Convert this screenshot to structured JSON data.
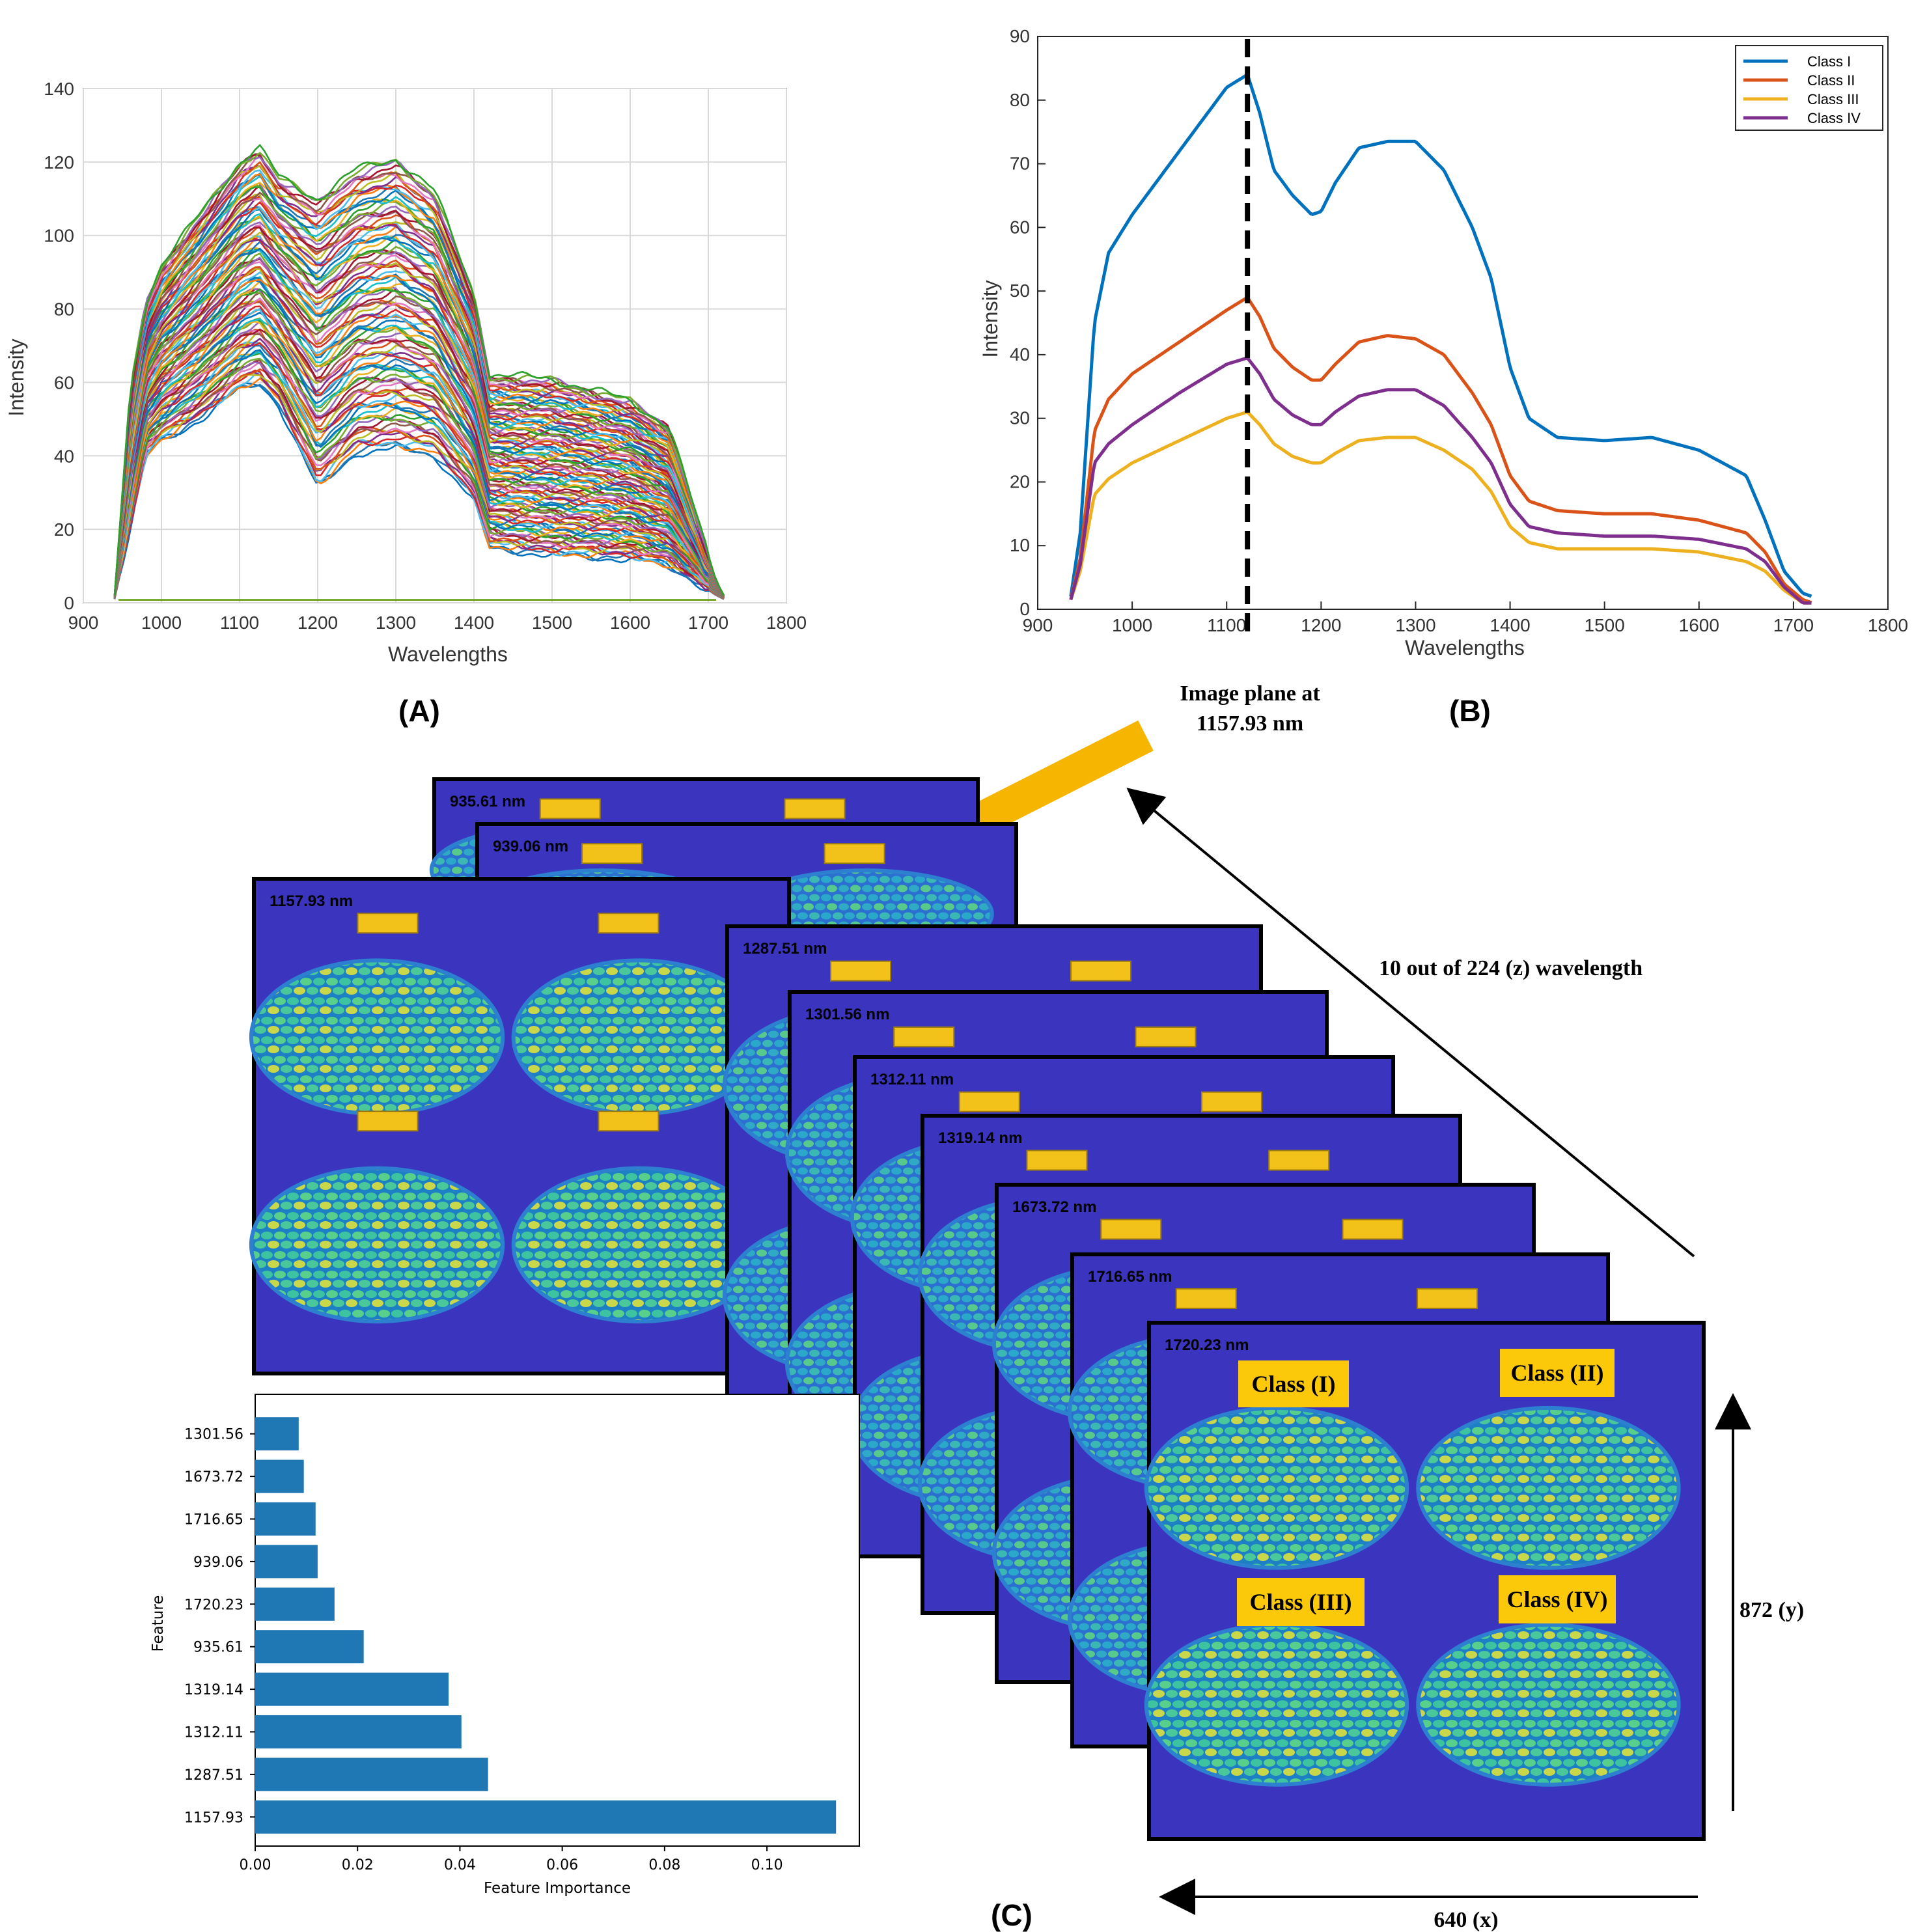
{
  "chart_data": [
    {
      "id": "A",
      "type": "line",
      "panel_label": "(A)",
      "xlabel": "Wavelengths",
      "ylabel": "Intensity",
      "xlim": [
        900,
        1800
      ],
      "ylim": [
        0,
        140
      ],
      "xticks": [
        900,
        1000,
        1100,
        1200,
        1300,
        1400,
        1500,
        1600,
        1700,
        1800
      ],
      "yticks": [
        0,
        20,
        40,
        60,
        80,
        100,
        120,
        140
      ],
      "grid": true,
      "description_series": "hundreds of overlapping pixel spectra",
      "envelope": {
        "x": [
          940,
          960,
          980,
          1000,
          1050,
          1100,
          1125,
          1150,
          1200,
          1250,
          1300,
          1350,
          1400,
          1420,
          1500,
          1600,
          1650,
          1690,
          1710,
          1720
        ],
        "upper": [
          2,
          58,
          82,
          92,
          106,
          120,
          124,
          116,
          110,
          118,
          121,
          112,
          84,
          62,
          61,
          55,
          48,
          20,
          6,
          2
        ],
        "lower": [
          1,
          20,
          40,
          44,
          50,
          58,
          60,
          54,
          31,
          41,
          42,
          40,
          28,
          15,
          13,
          12,
          10,
          5,
          2,
          1
        ]
      }
    },
    {
      "id": "B",
      "type": "line",
      "panel_label": "(B)",
      "xlabel": "Wavelengths",
      "ylabel": "Intensity",
      "xlim": [
        900,
        1800
      ],
      "ylim": [
        0,
        90
      ],
      "xticks": [
        900,
        1000,
        1100,
        1200,
        1300,
        1400,
        1500,
        1600,
        1700,
        1800
      ],
      "yticks": [
        0,
        10,
        20,
        30,
        40,
        50,
        60,
        70,
        80,
        90
      ],
      "grid": false,
      "legend_position": "top-right",
      "x": [
        935,
        945,
        960,
        975,
        1000,
        1050,
        1100,
        1122,
        1135,
        1150,
        1170,
        1190,
        1200,
        1215,
        1240,
        1270,
        1300,
        1330,
        1360,
        1380,
        1400,
        1420,
        1450,
        1500,
        1550,
        1600,
        1650,
        1670,
        1690,
        1710,
        1720
      ],
      "series": [
        {
          "name": "Class I",
          "color": "#0072BD",
          "values": [
            2,
            12,
            45,
            56,
            62,
            72,
            82,
            84,
            78,
            69,
            65,
            62,
            62.5,
            67,
            72.5,
            73.5,
            73.5,
            69,
            60,
            52,
            38,
            30,
            27,
            26.5,
            27,
            25,
            21,
            14,
            6,
            2.5,
            2
          ]
        },
        {
          "name": "Class II",
          "color": "#D95319",
          "values": [
            1.5,
            8,
            28,
            33,
            37,
            42,
            47,
            49,
            46,
            41,
            38,
            36,
            36,
            38.5,
            42,
            43,
            42.5,
            40,
            34,
            29,
            21,
            17,
            15.5,
            15,
            15,
            14,
            12,
            9,
            4,
            1.5,
            1
          ]
        },
        {
          "name": "Class III",
          "color": "#EDB120",
          "values": [
            1.5,
            6,
            18,
            20.5,
            23,
            26.5,
            30,
            31,
            29,
            26,
            24,
            23,
            23,
            24.5,
            26.5,
            27,
            27,
            25,
            22,
            18.5,
            13,
            10.5,
            9.5,
            9.5,
            9.5,
            9,
            7.5,
            6,
            3,
            1,
            1
          ]
        },
        {
          "name": "Class IV",
          "color": "#7E2F8E",
          "values": [
            1.5,
            7,
            23,
            26,
            29,
            34,
            38.5,
            39.5,
            37,
            33,
            30.5,
            29,
            29,
            31,
            33.5,
            34.5,
            34.5,
            32,
            27,
            23,
            16.5,
            13,
            12,
            11.5,
            11.5,
            11,
            9.5,
            7.5,
            3.5,
            1,
            1
          ]
        }
      ],
      "marker_line_x": 1122
    },
    {
      "id": "C-bar",
      "type": "bar",
      "orientation": "horizontal",
      "xlabel": "Feature Importance",
      "ylabel": "Feature",
      "xlim": [
        0,
        0.115
      ],
      "xticks": [
        "0.00",
        "0.02",
        "0.04",
        "0.06",
        "0.08",
        "0.10"
      ],
      "categories": [
        "1301.56",
        "1673.72",
        "1716.65",
        "939.06",
        "1720.23",
        "935.61",
        "1319.14",
        "1312.11",
        "1287.51",
        "1157.93"
      ],
      "values": [
        0.0085,
        0.0095,
        0.0118,
        0.0122,
        0.0155,
        0.0212,
        0.0378,
        0.0403,
        0.0455,
        0.1135
      ],
      "bar_color": "#1F77B4"
    }
  ],
  "annotation": {
    "image_plane_line1": "Image plane at",
    "image_plane_line2": "1157.93 nm",
    "wavelength_note": "10 out of 224 (z) wavelength",
    "y_dim": "872 (y)",
    "x_dim": "640 (x)",
    "panel_c": "(C)"
  },
  "stack_slices": [
    "935.61 nm",
    "939.06 nm",
    "1157.93 nm",
    "1287.51 nm",
    "1301.56 nm",
    "1312.11 nm",
    "1319.14 nm",
    "1673.72 nm",
    "1716.65 nm",
    "1720.23 nm"
  ],
  "class_tags": [
    "Class (I)",
    "Class (II)",
    "Class (III)",
    "Class (IV)"
  ],
  "colors": {
    "slice_background": "#3b34bf",
    "seed_green": "#2fb8a8",
    "seed_yellow": "#e0d84a",
    "tag_yellow": "#fcc80a",
    "arrow_orange": "#f6b500"
  }
}
